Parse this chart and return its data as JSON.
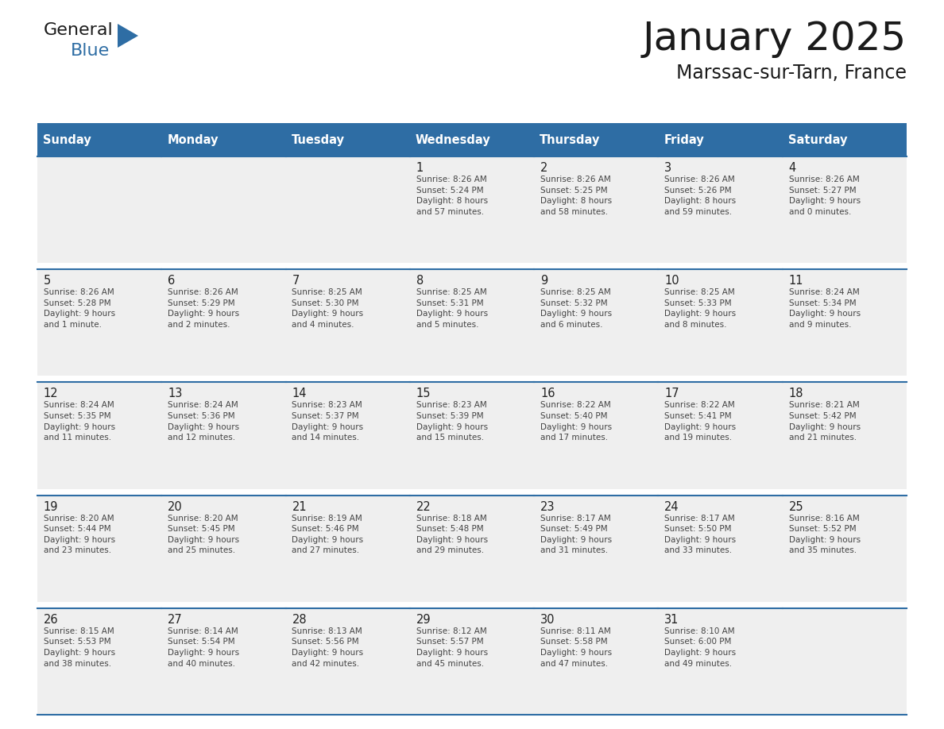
{
  "title": "January 2025",
  "subtitle": "Marssac-sur-Tarn, France",
  "header_color": "#2E6DA4",
  "header_text_color": "#FFFFFF",
  "cell_bg_color": "#EFEFEF",
  "cell_bg_empty": "#F8F8F8",
  "title_color": "#1a1a1a",
  "subtitle_color": "#1a1a1a",
  "day_names": [
    "Sunday",
    "Monday",
    "Tuesday",
    "Wednesday",
    "Thursday",
    "Friday",
    "Saturday"
  ],
  "weeks": [
    [
      {
        "day": "",
        "info": ""
      },
      {
        "day": "",
        "info": ""
      },
      {
        "day": "",
        "info": ""
      },
      {
        "day": "1",
        "info": "Sunrise: 8:26 AM\nSunset: 5:24 PM\nDaylight: 8 hours\nand 57 minutes."
      },
      {
        "day": "2",
        "info": "Sunrise: 8:26 AM\nSunset: 5:25 PM\nDaylight: 8 hours\nand 58 minutes."
      },
      {
        "day": "3",
        "info": "Sunrise: 8:26 AM\nSunset: 5:26 PM\nDaylight: 8 hours\nand 59 minutes."
      },
      {
        "day": "4",
        "info": "Sunrise: 8:26 AM\nSunset: 5:27 PM\nDaylight: 9 hours\nand 0 minutes."
      }
    ],
    [
      {
        "day": "5",
        "info": "Sunrise: 8:26 AM\nSunset: 5:28 PM\nDaylight: 9 hours\nand 1 minute."
      },
      {
        "day": "6",
        "info": "Sunrise: 8:26 AM\nSunset: 5:29 PM\nDaylight: 9 hours\nand 2 minutes."
      },
      {
        "day": "7",
        "info": "Sunrise: 8:25 AM\nSunset: 5:30 PM\nDaylight: 9 hours\nand 4 minutes."
      },
      {
        "day": "8",
        "info": "Sunrise: 8:25 AM\nSunset: 5:31 PM\nDaylight: 9 hours\nand 5 minutes."
      },
      {
        "day": "9",
        "info": "Sunrise: 8:25 AM\nSunset: 5:32 PM\nDaylight: 9 hours\nand 6 minutes."
      },
      {
        "day": "10",
        "info": "Sunrise: 8:25 AM\nSunset: 5:33 PM\nDaylight: 9 hours\nand 8 minutes."
      },
      {
        "day": "11",
        "info": "Sunrise: 8:24 AM\nSunset: 5:34 PM\nDaylight: 9 hours\nand 9 minutes."
      }
    ],
    [
      {
        "day": "12",
        "info": "Sunrise: 8:24 AM\nSunset: 5:35 PM\nDaylight: 9 hours\nand 11 minutes."
      },
      {
        "day": "13",
        "info": "Sunrise: 8:24 AM\nSunset: 5:36 PM\nDaylight: 9 hours\nand 12 minutes."
      },
      {
        "day": "14",
        "info": "Sunrise: 8:23 AM\nSunset: 5:37 PM\nDaylight: 9 hours\nand 14 minutes."
      },
      {
        "day": "15",
        "info": "Sunrise: 8:23 AM\nSunset: 5:39 PM\nDaylight: 9 hours\nand 15 minutes."
      },
      {
        "day": "16",
        "info": "Sunrise: 8:22 AM\nSunset: 5:40 PM\nDaylight: 9 hours\nand 17 minutes."
      },
      {
        "day": "17",
        "info": "Sunrise: 8:22 AM\nSunset: 5:41 PM\nDaylight: 9 hours\nand 19 minutes."
      },
      {
        "day": "18",
        "info": "Sunrise: 8:21 AM\nSunset: 5:42 PM\nDaylight: 9 hours\nand 21 minutes."
      }
    ],
    [
      {
        "day": "19",
        "info": "Sunrise: 8:20 AM\nSunset: 5:44 PM\nDaylight: 9 hours\nand 23 minutes."
      },
      {
        "day": "20",
        "info": "Sunrise: 8:20 AM\nSunset: 5:45 PM\nDaylight: 9 hours\nand 25 minutes."
      },
      {
        "day": "21",
        "info": "Sunrise: 8:19 AM\nSunset: 5:46 PM\nDaylight: 9 hours\nand 27 minutes."
      },
      {
        "day": "22",
        "info": "Sunrise: 8:18 AM\nSunset: 5:48 PM\nDaylight: 9 hours\nand 29 minutes."
      },
      {
        "day": "23",
        "info": "Sunrise: 8:17 AM\nSunset: 5:49 PM\nDaylight: 9 hours\nand 31 minutes."
      },
      {
        "day": "24",
        "info": "Sunrise: 8:17 AM\nSunset: 5:50 PM\nDaylight: 9 hours\nand 33 minutes."
      },
      {
        "day": "25",
        "info": "Sunrise: 8:16 AM\nSunset: 5:52 PM\nDaylight: 9 hours\nand 35 minutes."
      }
    ],
    [
      {
        "day": "26",
        "info": "Sunrise: 8:15 AM\nSunset: 5:53 PM\nDaylight: 9 hours\nand 38 minutes."
      },
      {
        "day": "27",
        "info": "Sunrise: 8:14 AM\nSunset: 5:54 PM\nDaylight: 9 hours\nand 40 minutes."
      },
      {
        "day": "28",
        "info": "Sunrise: 8:13 AM\nSunset: 5:56 PM\nDaylight: 9 hours\nand 42 minutes."
      },
      {
        "day": "29",
        "info": "Sunrise: 8:12 AM\nSunset: 5:57 PM\nDaylight: 9 hours\nand 45 minutes."
      },
      {
        "day": "30",
        "info": "Sunrise: 8:11 AM\nSunset: 5:58 PM\nDaylight: 9 hours\nand 47 minutes."
      },
      {
        "day": "31",
        "info": "Sunrise: 8:10 AM\nSunset: 6:00 PM\nDaylight: 9 hours\nand 49 minutes."
      },
      {
        "day": "",
        "info": ""
      }
    ]
  ],
  "line_color": "#2E6DA4",
  "text_color": "#444444",
  "day_number_color": "#222222",
  "logo_general_color": "#1a1a1a",
  "logo_blue_color": "#2E6DA4"
}
